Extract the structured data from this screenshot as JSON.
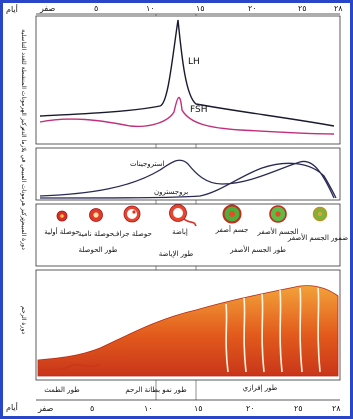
{
  "days_label": "أيام",
  "top_ticks": [
    "صفر",
    "٥",
    "١٠",
    "١٥",
    "٢٠",
    "٢٥",
    "٢٨"
  ],
  "bottom_ticks": [
    "صفر",
    "٥",
    "١٠",
    "١٥",
    "٢٠",
    "٢٥",
    "٢٨"
  ],
  "panel1": {
    "side_label": "تركيز الهرمونات المنشطة للغدد التناسلية",
    "lh_label": "LH",
    "fsh_label": "FSH",
    "lh_color": "#1a1a2e",
    "fsh_color": "#c0307a"
  },
  "panel2": {
    "side_label": "تركيز هرمونات المبيض في بلازما الدم",
    "estrogen_label": "استروجينات",
    "progesterone_label": "بروجسترون",
    "estrogen_color": "#2a2a55",
    "progesterone_color": "#2a2a55"
  },
  "panel3": {
    "side_label": "دورة المبيض",
    "stages": [
      {
        "label": "حوصلة أولية"
      },
      {
        "label": "حوصلة نامية"
      },
      {
        "label": "حوصلة جراف"
      },
      {
        "label": "إباضة"
      },
      {
        "label": "جسم أصفر"
      },
      {
        "label": "الجسم الأصفر"
      },
      {
        "label": "ضمور الجسم الأصفر"
      }
    ],
    "phases": [
      {
        "label": "طور الحوصلة"
      },
      {
        "label": "طور الإباضة"
      },
      {
        "label": "طور الجسم الأصفر"
      }
    ]
  },
  "panel4": {
    "side_label": "دورة الرحم",
    "phases": [
      {
        "label": "طور الطمث"
      },
      {
        "label": "طور نمو بطانة الرحم"
      },
      {
        "label": "طور إفرازي"
      }
    ],
    "tissue_color": "#e2581e",
    "highlight_color": "#f6b04a"
  }
}
